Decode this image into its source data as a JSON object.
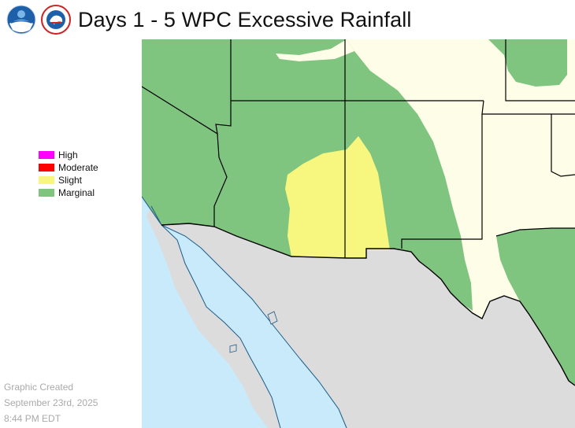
{
  "header": {
    "title": "Days 1 - 5 WPC Excessive Rainfall",
    "logos": [
      {
        "icon": "noaa-logo-icon",
        "text": "NOAA"
      },
      {
        "icon": "nws-logo-icon",
        "text": "NATIONAL WEATHER SERVICE"
      }
    ]
  },
  "legend": {
    "items": [
      {
        "label": "High",
        "color": "#ff00ff"
      },
      {
        "label": "Moderate",
        "color": "#ff0000"
      },
      {
        "label": "Slight",
        "color": "#f7f77f"
      },
      {
        "label": "Marginal",
        "color": "#7fc47f"
      }
    ]
  },
  "footer": {
    "line1": "Graphic Created",
    "line2": "September 23rd, 2025",
    "line3": "8:44 PM EDT"
  },
  "map": {
    "colors": {
      "ocean": "#c8eafa",
      "land_outside": "#dcdcdc",
      "land_us": "#fdfde8",
      "marginal": "#7fc47f",
      "slight": "#f7f77f",
      "borders": "#000000",
      "coast": "#1a5a8a"
    }
  }
}
